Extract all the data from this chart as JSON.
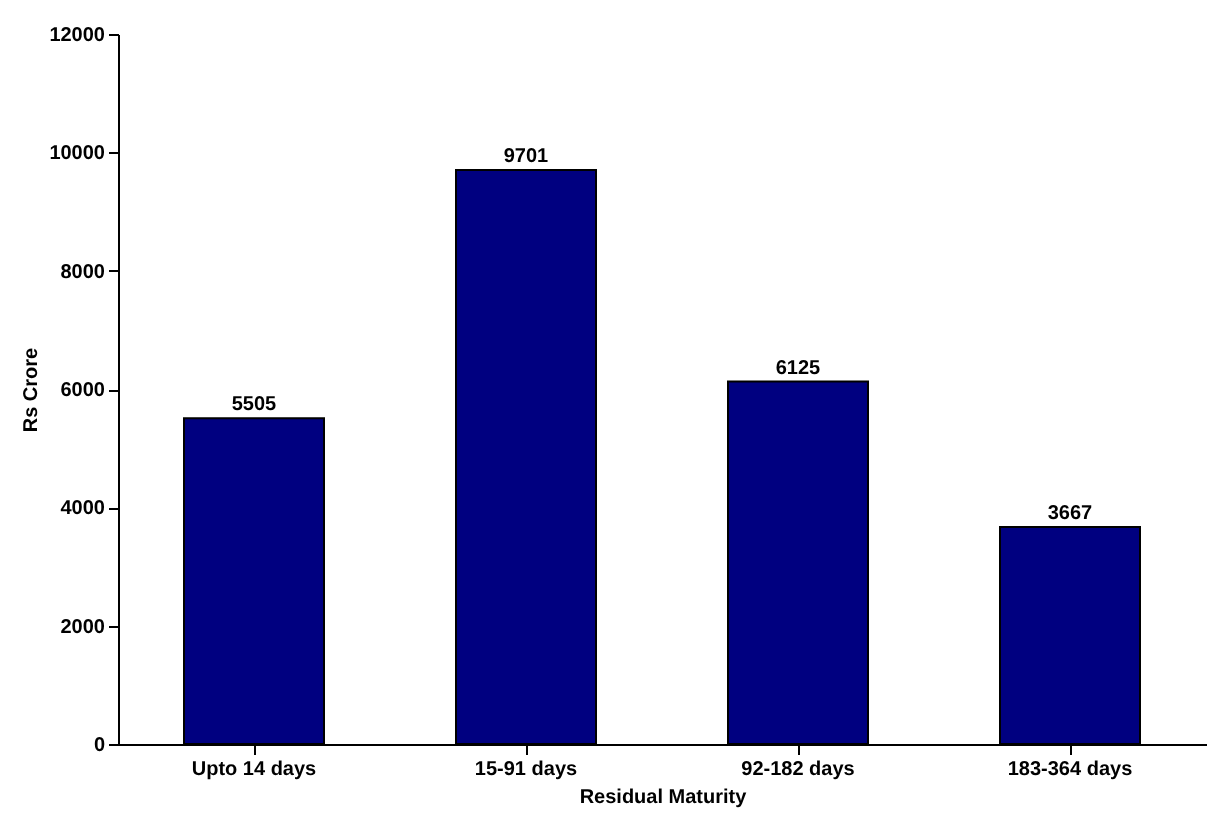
{
  "chart_data": {
    "type": "bar",
    "xlabel": "Residual Maturity",
    "ylabel": "Rs Crore",
    "categories": [
      "Upto 14 days",
      "15-91 days",
      "92-182 days",
      "183-364 days"
    ],
    "values": [
      5505,
      9701,
      6125,
      3667
    ],
    "color": "#000080",
    "ylim": [
      0,
      12000
    ],
    "yticks": [
      0,
      2000,
      4000,
      6000,
      8000,
      10000,
      12000
    ],
    "grid": false,
    "data_labels": true
  }
}
